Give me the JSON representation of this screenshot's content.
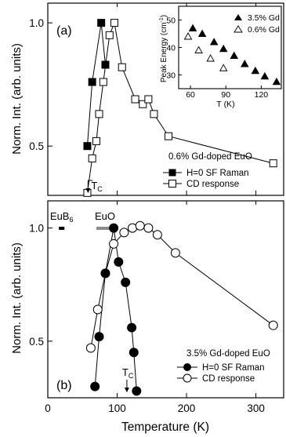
{
  "chart_data": [
    {
      "panel_label": "(a)",
      "type": "line",
      "ylabel": "Norm. Int. (arb. units)",
      "yticks": [
        "0.5",
        "1.0"
      ],
      "ylim": [
        0.3,
        1.08
      ],
      "legend_title": "0.6% Gd-doped EuO",
      "series": [
        {
          "name": "H=0 SF Raman",
          "marker": "filled-square",
          "points": [
            [
              57,
              0.5
            ],
            [
              64,
              0.76
            ],
            [
              77,
              1.0
            ],
            [
              83,
              0.83
            ]
          ]
        },
        {
          "name": "CD response",
          "marker": "open-square",
          "points": [
            [
              57,
              0.31
            ],
            [
              64,
              0.45
            ],
            [
              70,
              0.52
            ],
            [
              74,
              0.63
            ],
            [
              80,
              0.76
            ],
            [
              89,
              0.95
            ],
            [
              96,
              1.0
            ],
            [
              107,
              0.82
            ],
            [
              126,
              0.69
            ],
            [
              137,
              0.67
            ],
            [
              145,
              0.69
            ],
            [
              153,
              0.63
            ],
            [
              174,
              0.54
            ],
            [
              325,
              0.43
            ]
          ]
        }
      ],
      "annotation": "T",
      "annotation_sub": "C",
      "annotation_x": 58,
      "inset": {
        "xlabel": "T (K)",
        "ylabel": "Peak Energy (cm",
        "ylabel_sup": "-1",
        "ylabel_end": ")",
        "xticks": [
          "60",
          "90",
          "120"
        ],
        "yticks": [
          "30",
          "40",
          "50"
        ],
        "xlim": [
          50,
          137
        ],
        "ylim": [
          25,
          55
        ],
        "series": [
          {
            "name": "3.5% Gd",
            "marker": "filled-triangle",
            "points": [
              [
                62,
                47
              ],
              [
                70,
                45
              ],
              [
                80,
                42
              ],
              [
                88,
                39.5
              ],
              [
                97,
                37
              ],
              [
                106,
                34
              ],
              [
                115,
                31.5
              ],
              [
                123,
                29.5
              ],
              [
                133,
                27.5
              ]
            ]
          },
          {
            "name": "0.6% Gd",
            "marker": "open-triangle",
            "points": [
              [
                58,
                44
              ],
              [
                67,
                39
              ],
              [
                77,
                36
              ],
              [
                88,
                32.5
              ]
            ]
          }
        ]
      }
    },
    {
      "panel_label": "(b)",
      "type": "line",
      "xlabel": "Temperature (K)",
      "ylabel": "Norm. Int. (arb. units)",
      "xticks": [
        "0",
        "100",
        "200",
        "300"
      ],
      "xlim": [
        0,
        340
      ],
      "yticks": [
        "0.5",
        "1.0"
      ],
      "ylim": [
        0.25,
        1.12
      ],
      "legend_title": "3.5% Gd-doped EuO",
      "series": [
        {
          "name": "H=0 SF Raman",
          "marker": "filled-circle",
          "points": [
            [
              68,
              0.3
            ],
            [
              74,
              0.52
            ],
            [
              83,
              0.8
            ],
            [
              95,
              1.0
            ],
            [
              102,
              0.85
            ],
            [
              112,
              0.76
            ],
            [
              121,
              0.56
            ],
            [
              124,
              0.45
            ],
            [
              128,
              0.28
            ]
          ]
        },
        {
          "name": "CD response",
          "marker": "open-circle",
          "points": [
            [
              62,
              0.47
            ],
            [
              72,
              0.64
            ],
            [
              83,
              0.8
            ],
            [
              95,
              0.93
            ],
            [
              110,
              0.98
            ],
            [
              122,
              1.0
            ],
            [
              133,
              1.01
            ],
            [
              145,
              1.0
            ],
            [
              158,
              0.97
            ],
            [
              184,
              0.89
            ],
            [
              325,
              0.57
            ]
          ]
        }
      ],
      "annotation": "T",
      "annotation_sub": "C",
      "annotation_x": 114,
      "ranges": [
        {
          "label": "EuB",
          "label_sub": "6",
          "from": 16,
          "to": 24,
          "color": "#000000"
        },
        {
          "label": "EuO",
          "from": 70,
          "to": 95,
          "color": "#8c8c8c"
        }
      ]
    }
  ]
}
